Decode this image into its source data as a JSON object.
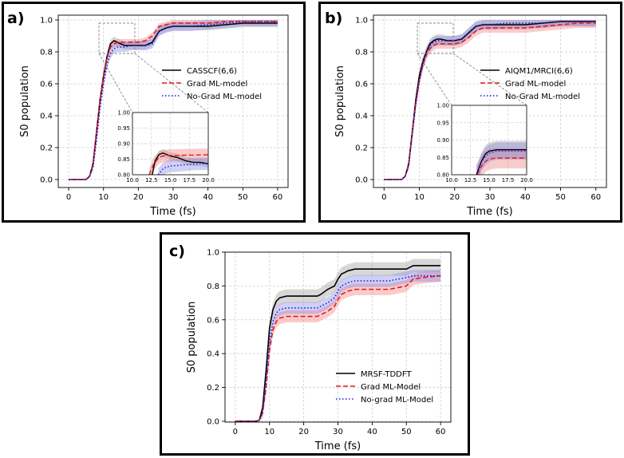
{
  "chart_data": [
    {
      "type": "line",
      "panel_label": "a)",
      "xlabel": "Time (fs)",
      "ylabel": "S0 population",
      "xlim": [
        -3,
        63
      ],
      "ylim": [
        -0.05,
        1.03
      ],
      "xticks": [
        0,
        10,
        20,
        30,
        40,
        50,
        60
      ],
      "yticks": [
        0.0,
        0.2,
        0.4,
        0.6,
        0.8,
        1.0
      ],
      "grid": true,
      "legend_position": "right",
      "series": [
        {
          "name": "CASSCF(6,6)",
          "style": "solid",
          "color": "#000000",
          "band_color": "#9a9a9a",
          "x": [
            0,
            5,
            6,
            7,
            8,
            9,
            10,
            11,
            12,
            13,
            14,
            16,
            18,
            20,
            22,
            24,
            26,
            28,
            30,
            35,
            40,
            45,
            50,
            55,
            60
          ],
          "y": [
            0,
            0,
            0.02,
            0.1,
            0.3,
            0.5,
            0.65,
            0.77,
            0.85,
            0.87,
            0.86,
            0.84,
            0.84,
            0.84,
            0.84,
            0.86,
            0.93,
            0.95,
            0.96,
            0.96,
            0.96,
            0.97,
            0.98,
            0.98,
            0.98
          ],
          "band": 0.025
        },
        {
          "name": "Grad ML-model",
          "style": "dashed",
          "color": "#e8191d",
          "band_color": "#f08080",
          "x": [
            0,
            5,
            6,
            7,
            8,
            9,
            10,
            11,
            12,
            13,
            14,
            16,
            18,
            20,
            22,
            24,
            26,
            28,
            30,
            35,
            40,
            45,
            50,
            55,
            60
          ],
          "y": [
            0,
            0,
            0.02,
            0.1,
            0.3,
            0.5,
            0.64,
            0.76,
            0.83,
            0.85,
            0.86,
            0.86,
            0.86,
            0.86,
            0.87,
            0.9,
            0.96,
            0.97,
            0.98,
            0.98,
            0.98,
            0.99,
            0.99,
            0.99,
            0.99
          ],
          "band": 0.02
        },
        {
          "name": "No-Grad ML-model",
          "style": "dotted",
          "color": "#1a1ad6",
          "band_color": "#8a8ae6",
          "x": [
            0,
            5,
            6,
            7,
            8,
            9,
            10,
            11,
            12,
            13,
            14,
            16,
            18,
            20,
            22,
            24,
            26,
            28,
            30,
            35,
            40,
            45,
            50,
            55,
            60
          ],
          "y": [
            0,
            0,
            0.02,
            0.08,
            0.25,
            0.45,
            0.6,
            0.72,
            0.79,
            0.82,
            0.83,
            0.83,
            0.84,
            0.84,
            0.84,
            0.85,
            0.93,
            0.95,
            0.96,
            0.96,
            0.97,
            0.98,
            0.99,
            0.99,
            0.99
          ],
          "band": 0.03
        }
      ],
      "inset": {
        "xlim": [
          10,
          20
        ],
        "ylim": [
          0.8,
          1.0
        ],
        "xticks": [
          10.0,
          12.5,
          15.0,
          17.5,
          20.0
        ],
        "yticks": [
          0.8,
          0.85,
          0.9,
          0.95,
          1.0
        ],
        "series": [
          {
            "name": "CASSCF(6,6)",
            "x": [
              12.6,
              13,
              13.5,
              14,
              14.5,
              15,
              16,
              17,
              18,
              19,
              20
            ],
            "y": [
              0.8,
              0.845,
              0.865,
              0.87,
              0.865,
              0.86,
              0.855,
              0.845,
              0.84,
              0.84,
              0.835
            ],
            "band": 0.012
          },
          {
            "name": "Grad ML-model",
            "x": [
              12.2,
              12.8,
              13.5,
              14,
              15,
              16,
              17,
              18,
              19,
              20
            ],
            "y": [
              0.8,
              0.835,
              0.855,
              0.86,
              0.862,
              0.862,
              0.863,
              0.863,
              0.864,
              0.864
            ],
            "band": 0.02
          },
          {
            "name": "No-Grad ML-model",
            "x": [
              13.4,
              14,
              14.5,
              15,
              16,
              17,
              18,
              19,
              20
            ],
            "y": [
              0.8,
              0.818,
              0.825,
              0.828,
              0.83,
              0.832,
              0.834,
              0.835,
              0.835
            ],
            "band": 0.02
          }
        ]
      }
    },
    {
      "type": "line",
      "panel_label": "b)",
      "xlabel": "Time (fs)",
      "ylabel": "S0 population",
      "xlim": [
        -3,
        63
      ],
      "ylim": [
        -0.05,
        1.03
      ],
      "xticks": [
        0,
        10,
        20,
        30,
        40,
        50,
        60
      ],
      "yticks": [
        0.0,
        0.2,
        0.4,
        0.6,
        0.8,
        1.0
      ],
      "grid": true,
      "legend_position": "right",
      "series": [
        {
          "name": "AIQM1/MRCI(6,6)",
          "style": "solid",
          "color": "#000000",
          "band_color": "#9a9a9a",
          "x": [
            0,
            5,
            6,
            7,
            8,
            9,
            10,
            11,
            12,
            13,
            14,
            15,
            16,
            18,
            20,
            22,
            24,
            26,
            28,
            30,
            35,
            40,
            45,
            50,
            55,
            60
          ],
          "y": [
            0,
            0,
            0.02,
            0.1,
            0.3,
            0.5,
            0.65,
            0.74,
            0.8,
            0.85,
            0.87,
            0.88,
            0.88,
            0.87,
            0.87,
            0.88,
            0.92,
            0.96,
            0.97,
            0.97,
            0.97,
            0.97,
            0.98,
            0.99,
            0.99,
            0.99
          ],
          "band": 0.03
        },
        {
          "name": "Grad ML-model",
          "style": "dashed",
          "color": "#e8191d",
          "band_color": "#f08080",
          "x": [
            0,
            5,
            6,
            7,
            8,
            9,
            10,
            11,
            12,
            13,
            14,
            15,
            16,
            18,
            20,
            22,
            24,
            26,
            28,
            30,
            35,
            40,
            45,
            50,
            55,
            60
          ],
          "y": [
            0,
            0,
            0.02,
            0.1,
            0.3,
            0.48,
            0.62,
            0.72,
            0.78,
            0.82,
            0.84,
            0.85,
            0.85,
            0.85,
            0.85,
            0.86,
            0.89,
            0.93,
            0.95,
            0.95,
            0.95,
            0.95,
            0.96,
            0.97,
            0.98,
            0.98
          ],
          "band": 0.03
        },
        {
          "name": "No-Grad ML-model",
          "style": "dotted",
          "color": "#1a1ad6",
          "band_color": "#8a8ae6",
          "x": [
            0,
            5,
            6,
            7,
            8,
            9,
            10,
            11,
            12,
            13,
            14,
            15,
            16,
            18,
            20,
            22,
            24,
            26,
            28,
            30,
            35,
            40,
            45,
            50,
            55,
            60
          ],
          "y": [
            0,
            0,
            0.02,
            0.09,
            0.28,
            0.47,
            0.62,
            0.72,
            0.8,
            0.84,
            0.86,
            0.87,
            0.87,
            0.87,
            0.87,
            0.88,
            0.92,
            0.96,
            0.97,
            0.97,
            0.98,
            0.98,
            0.98,
            0.99,
            0.99,
            0.99
          ],
          "band": 0.03
        }
      ],
      "inset": {
        "xlim": [
          10,
          20
        ],
        "ylim": [
          0.8,
          1.0
        ],
        "xticks": [
          10.0,
          12.5,
          15.0,
          17.5,
          20.0
        ],
        "yticks": [
          0.8,
          0.85,
          0.9,
          0.95,
          1.0
        ],
        "series": [
          {
            "name": "AIQM1/MRCI(6,6)",
            "x": [
              13.3,
              14,
              14.5,
              15,
              16,
              17,
              18,
              19,
              20
            ],
            "y": [
              0.8,
              0.84,
              0.86,
              0.868,
              0.872,
              0.872,
              0.872,
              0.872,
              0.872
            ],
            "band": 0.025
          },
          {
            "name": "Grad ML-model",
            "x": [
              13.4,
              14,
              14.5,
              15,
              16,
              17,
              18,
              19,
              20
            ],
            "y": [
              0.8,
              0.825,
              0.838,
              0.845,
              0.848,
              0.848,
              0.848,
              0.848,
              0.848
            ],
            "band": 0.03
          },
          {
            "name": "No-Grad ML-model",
            "x": [
              13.3,
              14,
              14.5,
              15,
              16,
              17,
              18,
              19,
              20
            ],
            "y": [
              0.8,
              0.838,
              0.852,
              0.862,
              0.868,
              0.868,
              0.868,
              0.868,
              0.868
            ],
            "band": 0.025
          }
        ]
      }
    },
    {
      "type": "line",
      "panel_label": "c)",
      "xlabel": "Time (fs)",
      "ylabel": "S0 population",
      "xlim": [
        -3,
        63
      ],
      "ylim": [
        -0.005,
        1.0
      ],
      "xticks": [
        0,
        10,
        20,
        30,
        40,
        50,
        60
      ],
      "yticks": [
        0.0,
        0.2,
        0.4,
        0.6,
        0.8,
        1.0
      ],
      "grid": true,
      "legend_position": "lower-right",
      "series": [
        {
          "name": "MRSF-TDDFT",
          "style": "solid",
          "color": "#000000",
          "band_color": "#9a9a9a",
          "x": [
            0,
            6,
            7,
            8,
            9,
            10,
            11,
            12,
            13,
            15,
            20,
            24,
            25,
            27,
            29,
            30,
            31,
            32,
            33,
            35,
            40,
            45,
            50,
            52,
            55,
            60
          ],
          "y": [
            0,
            0,
            0.005,
            0.08,
            0.3,
            0.55,
            0.66,
            0.71,
            0.73,
            0.74,
            0.74,
            0.74,
            0.75,
            0.78,
            0.8,
            0.84,
            0.87,
            0.88,
            0.89,
            0.9,
            0.9,
            0.9,
            0.9,
            0.92,
            0.92,
            0.92
          ],
          "band": 0.04
        },
        {
          "name": "Grad ML-Model",
          "style": "dashed",
          "color": "#e8191d",
          "band_color": "#f08080",
          "x": [
            0,
            6,
            7,
            8,
            9,
            10,
            11,
            12,
            13,
            15,
            20,
            24,
            25,
            27,
            29,
            30,
            31,
            32,
            33,
            35,
            40,
            45,
            50,
            52,
            55,
            60
          ],
          "y": [
            0,
            0,
            0.005,
            0.05,
            0.2,
            0.42,
            0.54,
            0.59,
            0.61,
            0.62,
            0.62,
            0.62,
            0.63,
            0.65,
            0.68,
            0.72,
            0.75,
            0.76,
            0.77,
            0.78,
            0.78,
            0.78,
            0.8,
            0.84,
            0.85,
            0.86
          ],
          "band": 0.035
        },
        {
          "name": "No-grad ML-Model",
          "style": "dotted",
          "color": "#1a1ad6",
          "band_color": "#8a8ae6",
          "x": [
            0,
            6,
            7,
            8,
            9,
            10,
            11,
            12,
            13,
            15,
            20,
            24,
            25,
            27,
            29,
            30,
            31,
            32,
            33,
            35,
            40,
            45,
            50,
            52,
            55,
            60
          ],
          "y": [
            0,
            0,
            0.005,
            0.06,
            0.24,
            0.47,
            0.59,
            0.64,
            0.66,
            0.67,
            0.67,
            0.67,
            0.68,
            0.7,
            0.73,
            0.77,
            0.8,
            0.81,
            0.82,
            0.83,
            0.83,
            0.83,
            0.85,
            0.86,
            0.86,
            0.86
          ],
          "band": 0.035
        }
      ]
    }
  ]
}
